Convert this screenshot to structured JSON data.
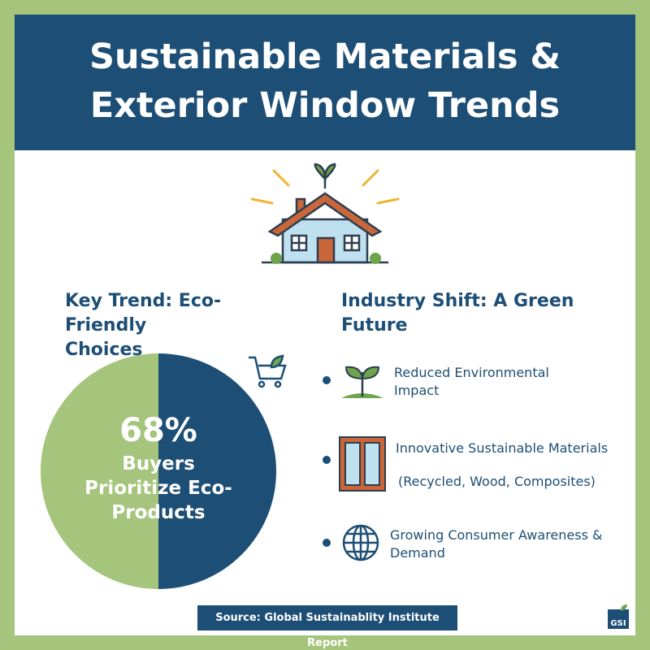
{
  "header": {
    "title": "Sustainable Materials & Exterior Window Trends"
  },
  "key_trend": {
    "heading": "Key Trend: Eco-Friendly Choices",
    "stat": "68%",
    "stat_label": "Buyers Prioritize Eco-Products"
  },
  "industry_shift": {
    "heading": "Industry Shift: A Green Future",
    "items": [
      {
        "text": "Reduced Environmental Impact"
      },
      {
        "text": "Innovative Sustainable Materials",
        "note": "(Recycled, Wood, Composites)"
      },
      {
        "text": "Growing Consumer Awareness & Demand"
      }
    ]
  },
  "footer": {
    "source": "Source: Global Sustainablity Institute Report",
    "logo": "GSI"
  }
}
